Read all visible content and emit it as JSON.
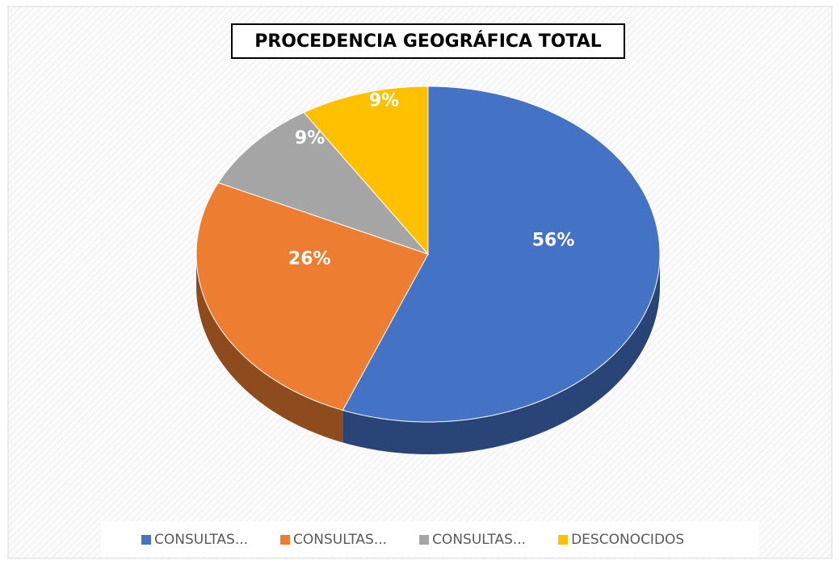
{
  "chart_data": {
    "type": "pie",
    "title": "PROCEDENCIA GEOGRÁFICA TOTAL",
    "series": [
      {
        "name": "CONSULTAS...",
        "color": "#4472c4"
      },
      {
        "name": "CONSULTAS...",
        "color": "#ed7d31"
      },
      {
        "name": "CONSULTAS...",
        "color": "#a5a5a5"
      },
      {
        "name": "DESCONOCIDOS",
        "color": "#ffc000"
      }
    ],
    "values": [
      56,
      26,
      9,
      9
    ],
    "value_labels": [
      "56%",
      "26%",
      "9%",
      "9%"
    ],
    "legend": "bottom"
  }
}
